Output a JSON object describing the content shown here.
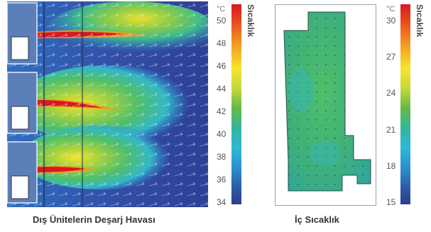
{
  "left_panel": {
    "caption": "Dış Ünitelerin Deşarj Havası",
    "colorbar": {
      "title": "Sıcaklık",
      "unit": "°C",
      "ticks": [
        "50",
        "48",
        "46",
        "44",
        "42",
        "40",
        "38",
        "36",
        "34"
      ]
    }
  },
  "right_panel": {
    "caption": "İç Sıcaklık",
    "colorbar": {
      "title": "Sıcaklık",
      "unit": "°C",
      "ticks": [
        "30",
        "27",
        "24",
        "21",
        "18",
        "15"
      ]
    }
  },
  "colors": {
    "hot": "#d71920",
    "warm": "#f6e52c",
    "mid": "#62bb47",
    "cool": "#2fb7d6",
    "cold": "#2c3e8f"
  }
}
